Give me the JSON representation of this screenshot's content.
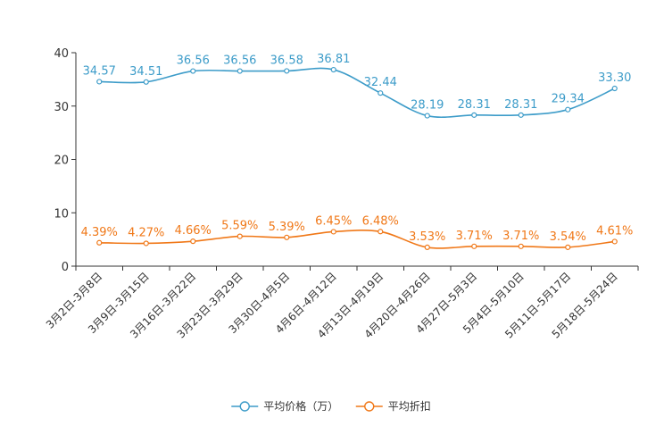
{
  "chart_data": {
    "type": "line",
    "title": "",
    "xlabel": "",
    "ylabel": "",
    "ylim": [
      0,
      40
    ],
    "yticks": [
      0,
      10,
      20,
      30,
      40
    ],
    "categories": [
      "3月2日-3月8日",
      "3月9日-3月15日",
      "3月16日-3月22日",
      "3月23日-3月29日",
      "3月30日-4月5日",
      "4月6日-4月12日",
      "4月13日-4月19日",
      "4月20日-4月26日",
      "4月27日-5月3日",
      "5月4日-5月10日",
      "5月11日-5月17日",
      "5月18日-5月24日"
    ],
    "series": [
      {
        "name": "平均价格（万）",
        "color": "#3d9cc9",
        "values": [
          34.57,
          34.51,
          36.56,
          36.56,
          36.58,
          36.81,
          32.44,
          28.19,
          28.31,
          28.31,
          29.34,
          33.3
        ],
        "labels": [
          "34.57",
          "34.51",
          "36.56",
          "36.56",
          "36.58",
          "36.81",
          "32.44",
          "28.19",
          "28.31",
          "28.31",
          "29.34",
          "33.30"
        ]
      },
      {
        "name": "平均折扣",
        "color": "#f07818",
        "values": [
          4.39,
          4.27,
          4.66,
          5.59,
          5.39,
          6.45,
          6.48,
          3.53,
          3.71,
          3.71,
          3.54,
          4.61
        ],
        "labels": [
          "4.39%",
          "4.27%",
          "4.66%",
          "5.59%",
          "5.39%",
          "6.45%",
          "6.48%",
          "3.53%",
          "3.71%",
          "3.71%",
          "3.54%",
          "4.61%"
        ]
      }
    ],
    "legend": "bottom-center",
    "grid": false
  }
}
